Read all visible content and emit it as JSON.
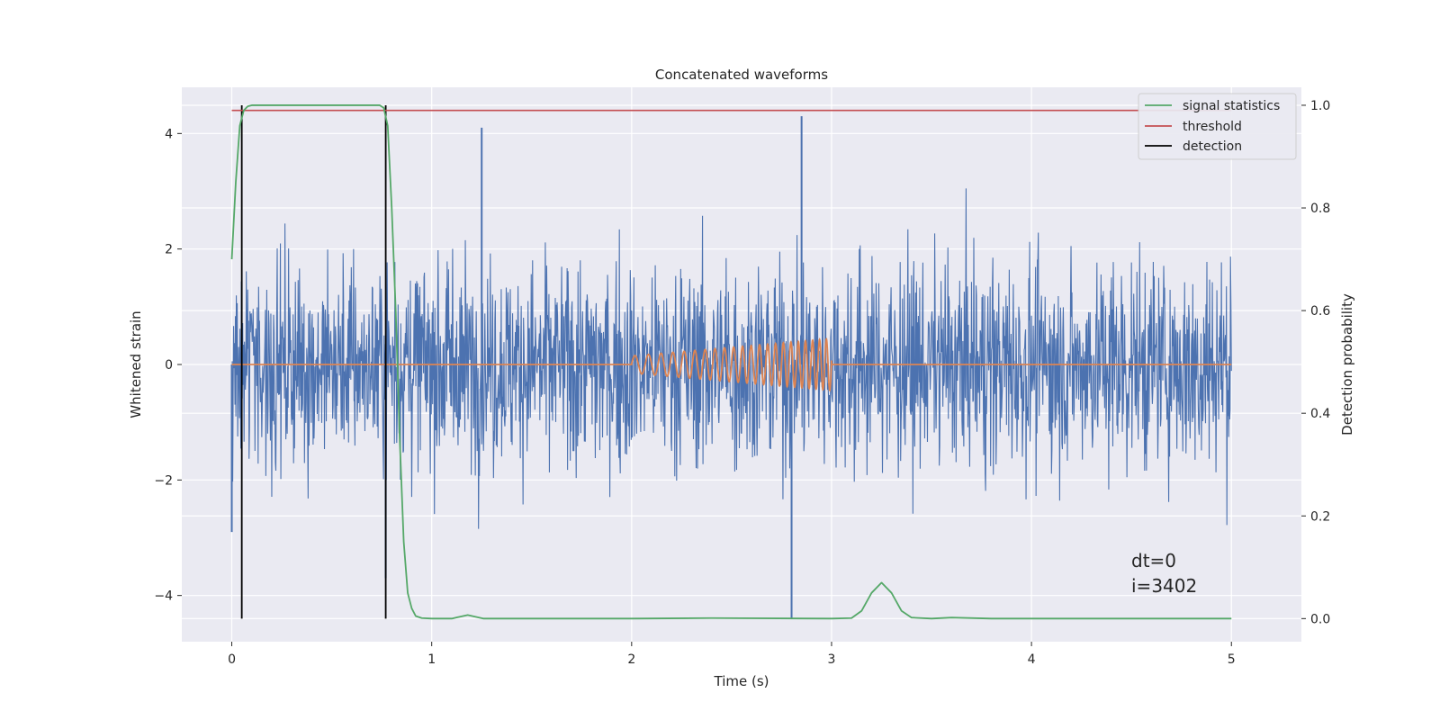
{
  "chart_data": {
    "type": "line",
    "title": "Concatenated waveforms",
    "xlabel": "Time (s)",
    "ylabel": "Whitened strain",
    "ylabel_right": "Detection probability",
    "xlim": [
      -0.25,
      5.35
    ],
    "ylim": [
      -4.8,
      4.8
    ],
    "ylim_right": [
      -0.045,
      1.035
    ],
    "x_ticks": [
      0,
      1,
      2,
      3,
      4,
      5
    ],
    "y_ticks": [
      -4,
      -2,
      0,
      2,
      4
    ],
    "y_ticks_labels": [
      "−4",
      "−2",
      "0",
      "2",
      "4"
    ],
    "y2_ticks": [
      0.0,
      0.2,
      0.4,
      0.6,
      0.8,
      1.0
    ],
    "y2_ticks_labels": [
      "0.0",
      "0.2",
      "0.4",
      "0.6",
      "0.8",
      "1.0"
    ],
    "grid": true,
    "legend_position": "upper right",
    "colors": {
      "strain": "#4c72b0",
      "injection": "#dd8452",
      "signal_statistics": "#55a868",
      "threshold": "#c44e52",
      "detection": "#000000",
      "background": "#eaeaf2",
      "grid": "#ffffff"
    },
    "series": [
      {
        "name": "signal statistics",
        "axis": "right",
        "x": [
          0.0,
          0.02,
          0.04,
          0.06,
          0.08,
          0.1,
          0.2,
          0.4,
          0.6,
          0.74,
          0.76,
          0.78,
          0.8,
          0.82,
          0.84,
          0.86,
          0.88,
          0.9,
          0.92,
          0.95,
          1.0,
          1.1,
          1.18,
          1.26,
          1.4,
          2.0,
          2.4,
          3.0,
          3.1,
          3.15,
          3.2,
          3.25,
          3.3,
          3.35,
          3.4,
          3.5,
          3.6,
          3.8,
          4.0,
          5.0
        ],
        "y": [
          0.7,
          0.85,
          0.96,
          0.99,
          0.998,
          1.0,
          1.0,
          1.0,
          1.0,
          1.0,
          0.995,
          0.96,
          0.8,
          0.6,
          0.35,
          0.15,
          0.05,
          0.02,
          0.005,
          0.001,
          0.0,
          0.0,
          0.007,
          0.0,
          0.0,
          0.0,
          0.001,
          0.0,
          0.001,
          0.015,
          0.05,
          0.07,
          0.05,
          0.015,
          0.002,
          0.0,
          0.002,
          0.0,
          0.0,
          0.0
        ]
      },
      {
        "name": "threshold",
        "axis": "right",
        "x": [
          0,
          5
        ],
        "y": [
          0.99,
          0.99
        ]
      },
      {
        "name": "detection",
        "axis": "right",
        "x": [
          0.05,
          0.77
        ],
        "y": [
          0.0,
          1.0
        ]
      },
      {
        "name": "",
        "axis": "left",
        "role": "whitened-strain",
        "x": [
          0,
          5
        ],
        "rms": 0.9,
        "spikes": [
          [
            1.25,
            4.1
          ],
          [
            2.85,
            4.3
          ],
          [
            2.8,
            -4.4
          ],
          [
            0.77,
            -3.7
          ],
          [
            0.0,
            -2.9
          ]
        ]
      },
      {
        "name": "",
        "axis": "left",
        "role": "injected-waveform",
        "x_start": 2.0,
        "x_end": 3.0,
        "amp_start": 0.15,
        "amp_end": 0.45,
        "f_start": 14,
        "f_end": 30
      }
    ],
    "legend": [
      "signal statistics",
      "threshold",
      "detection"
    ],
    "annotations": [
      "dt=0",
      "i=3402"
    ]
  }
}
